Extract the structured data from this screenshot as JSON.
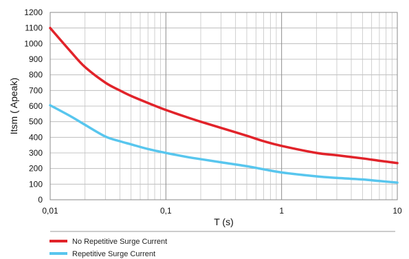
{
  "chart_data": {
    "type": "line",
    "title": "",
    "xlabel": "T (s)",
    "ylabel": "Itsm ( Apeak)",
    "xscale": "log",
    "xlim": [
      0.01,
      10
    ],
    "ylim": [
      0,
      1200
    ],
    "grid": true,
    "x_ticks": [
      {
        "value": 0.01,
        "label": "0,01"
      },
      {
        "value": 0.1,
        "label": "0,1"
      },
      {
        "value": 1,
        "label": "1"
      },
      {
        "value": 10,
        "label": "10"
      }
    ],
    "y_ticks": [
      {
        "value": 0,
        "label": "0"
      },
      {
        "value": 100,
        "label": "100"
      },
      {
        "value": 200,
        "label": "200"
      },
      {
        "value": 300,
        "label": "300"
      },
      {
        "value": 400,
        "label": "400"
      },
      {
        "value": 500,
        "label": "500"
      },
      {
        "value": 600,
        "label": "600"
      },
      {
        "value": 700,
        "label": "700"
      },
      {
        "value": 800,
        "label": "800"
      },
      {
        "value": 900,
        "label": "900"
      },
      {
        "value": 1000,
        "label": "1000"
      },
      {
        "value": 1100,
        "label": "1100"
      },
      {
        "value": 1200,
        "label": "1200"
      }
    ],
    "legend_position": "bottom",
    "series": [
      {
        "name": "No Repetitive Surge Current",
        "color": "#e1232a",
        "x": [
          0.01,
          0.015,
          0.02,
          0.03,
          0.04,
          0.05,
          0.07,
          0.1,
          0.15,
          0.2,
          0.3,
          0.5,
          0.7,
          1,
          2,
          3,
          5,
          7,
          10
        ],
        "y": [
          1100,
          950,
          850,
          750,
          700,
          665,
          620,
          575,
          530,
          500,
          460,
          410,
          375,
          345,
          300,
          285,
          265,
          250,
          235
        ]
      },
      {
        "name": "Repetitive Surge Current",
        "color": "#58c6ee",
        "x": [
          0.01,
          0.015,
          0.02,
          0.03,
          0.04,
          0.05,
          0.07,
          0.1,
          0.15,
          0.2,
          0.3,
          0.5,
          0.7,
          1,
          2,
          3,
          5,
          7,
          10
        ],
        "y": [
          605,
          535,
          480,
          405,
          375,
          355,
          325,
          300,
          275,
          260,
          240,
          215,
          195,
          175,
          150,
          140,
          130,
          120,
          110
        ]
      }
    ]
  }
}
